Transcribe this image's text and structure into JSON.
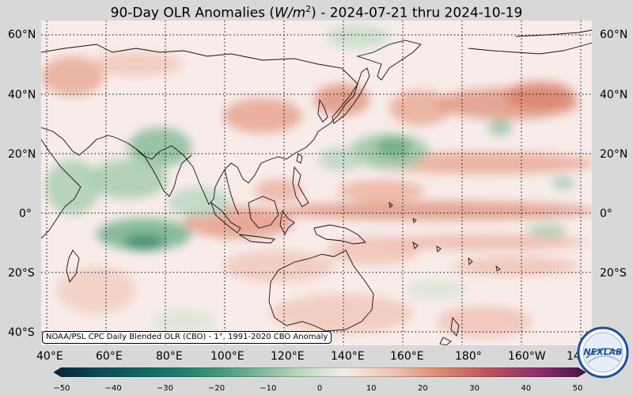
{
  "title": {
    "prefix": "90-Day OLR Anomalies (",
    "unit_base": "W/m",
    "unit_exp": "2",
    "suffix": ") - 2024-07-21 thru 2024-10-19"
  },
  "lat_labels": [
    "60°N",
    "40°N",
    "20°N",
    "0°",
    "20°S",
    "40°S"
  ],
  "lon_labels": [
    "40°E",
    "60°E",
    "80°E",
    "100°E",
    "120°E",
    "140°E",
    "160°E",
    "180°",
    "160°W",
    "14"
  ],
  "source_note": "NOAA/PSL CPC Daily Blended OLR (CBO) - 1°, 1991-2020 CBO Anomaly",
  "colorbar": {
    "ticks": [
      "−50",
      "−40",
      "−30",
      "−20",
      "−10",
      "0",
      "10",
      "20",
      "30",
      "40",
      "50"
    ],
    "colors": [
      "#06233a",
      "#0b4d59",
      "#0f6e66",
      "#2a8a72",
      "#6aae8f",
      "#b6d3bb",
      "#f3efe9",
      "#f1c4b0",
      "#dd8a72",
      "#c0525a",
      "#8f2f6e",
      "#4a1248"
    ]
  },
  "logo": {
    "text": "NEXLAB",
    "name": "nexlab-logo"
  }
}
